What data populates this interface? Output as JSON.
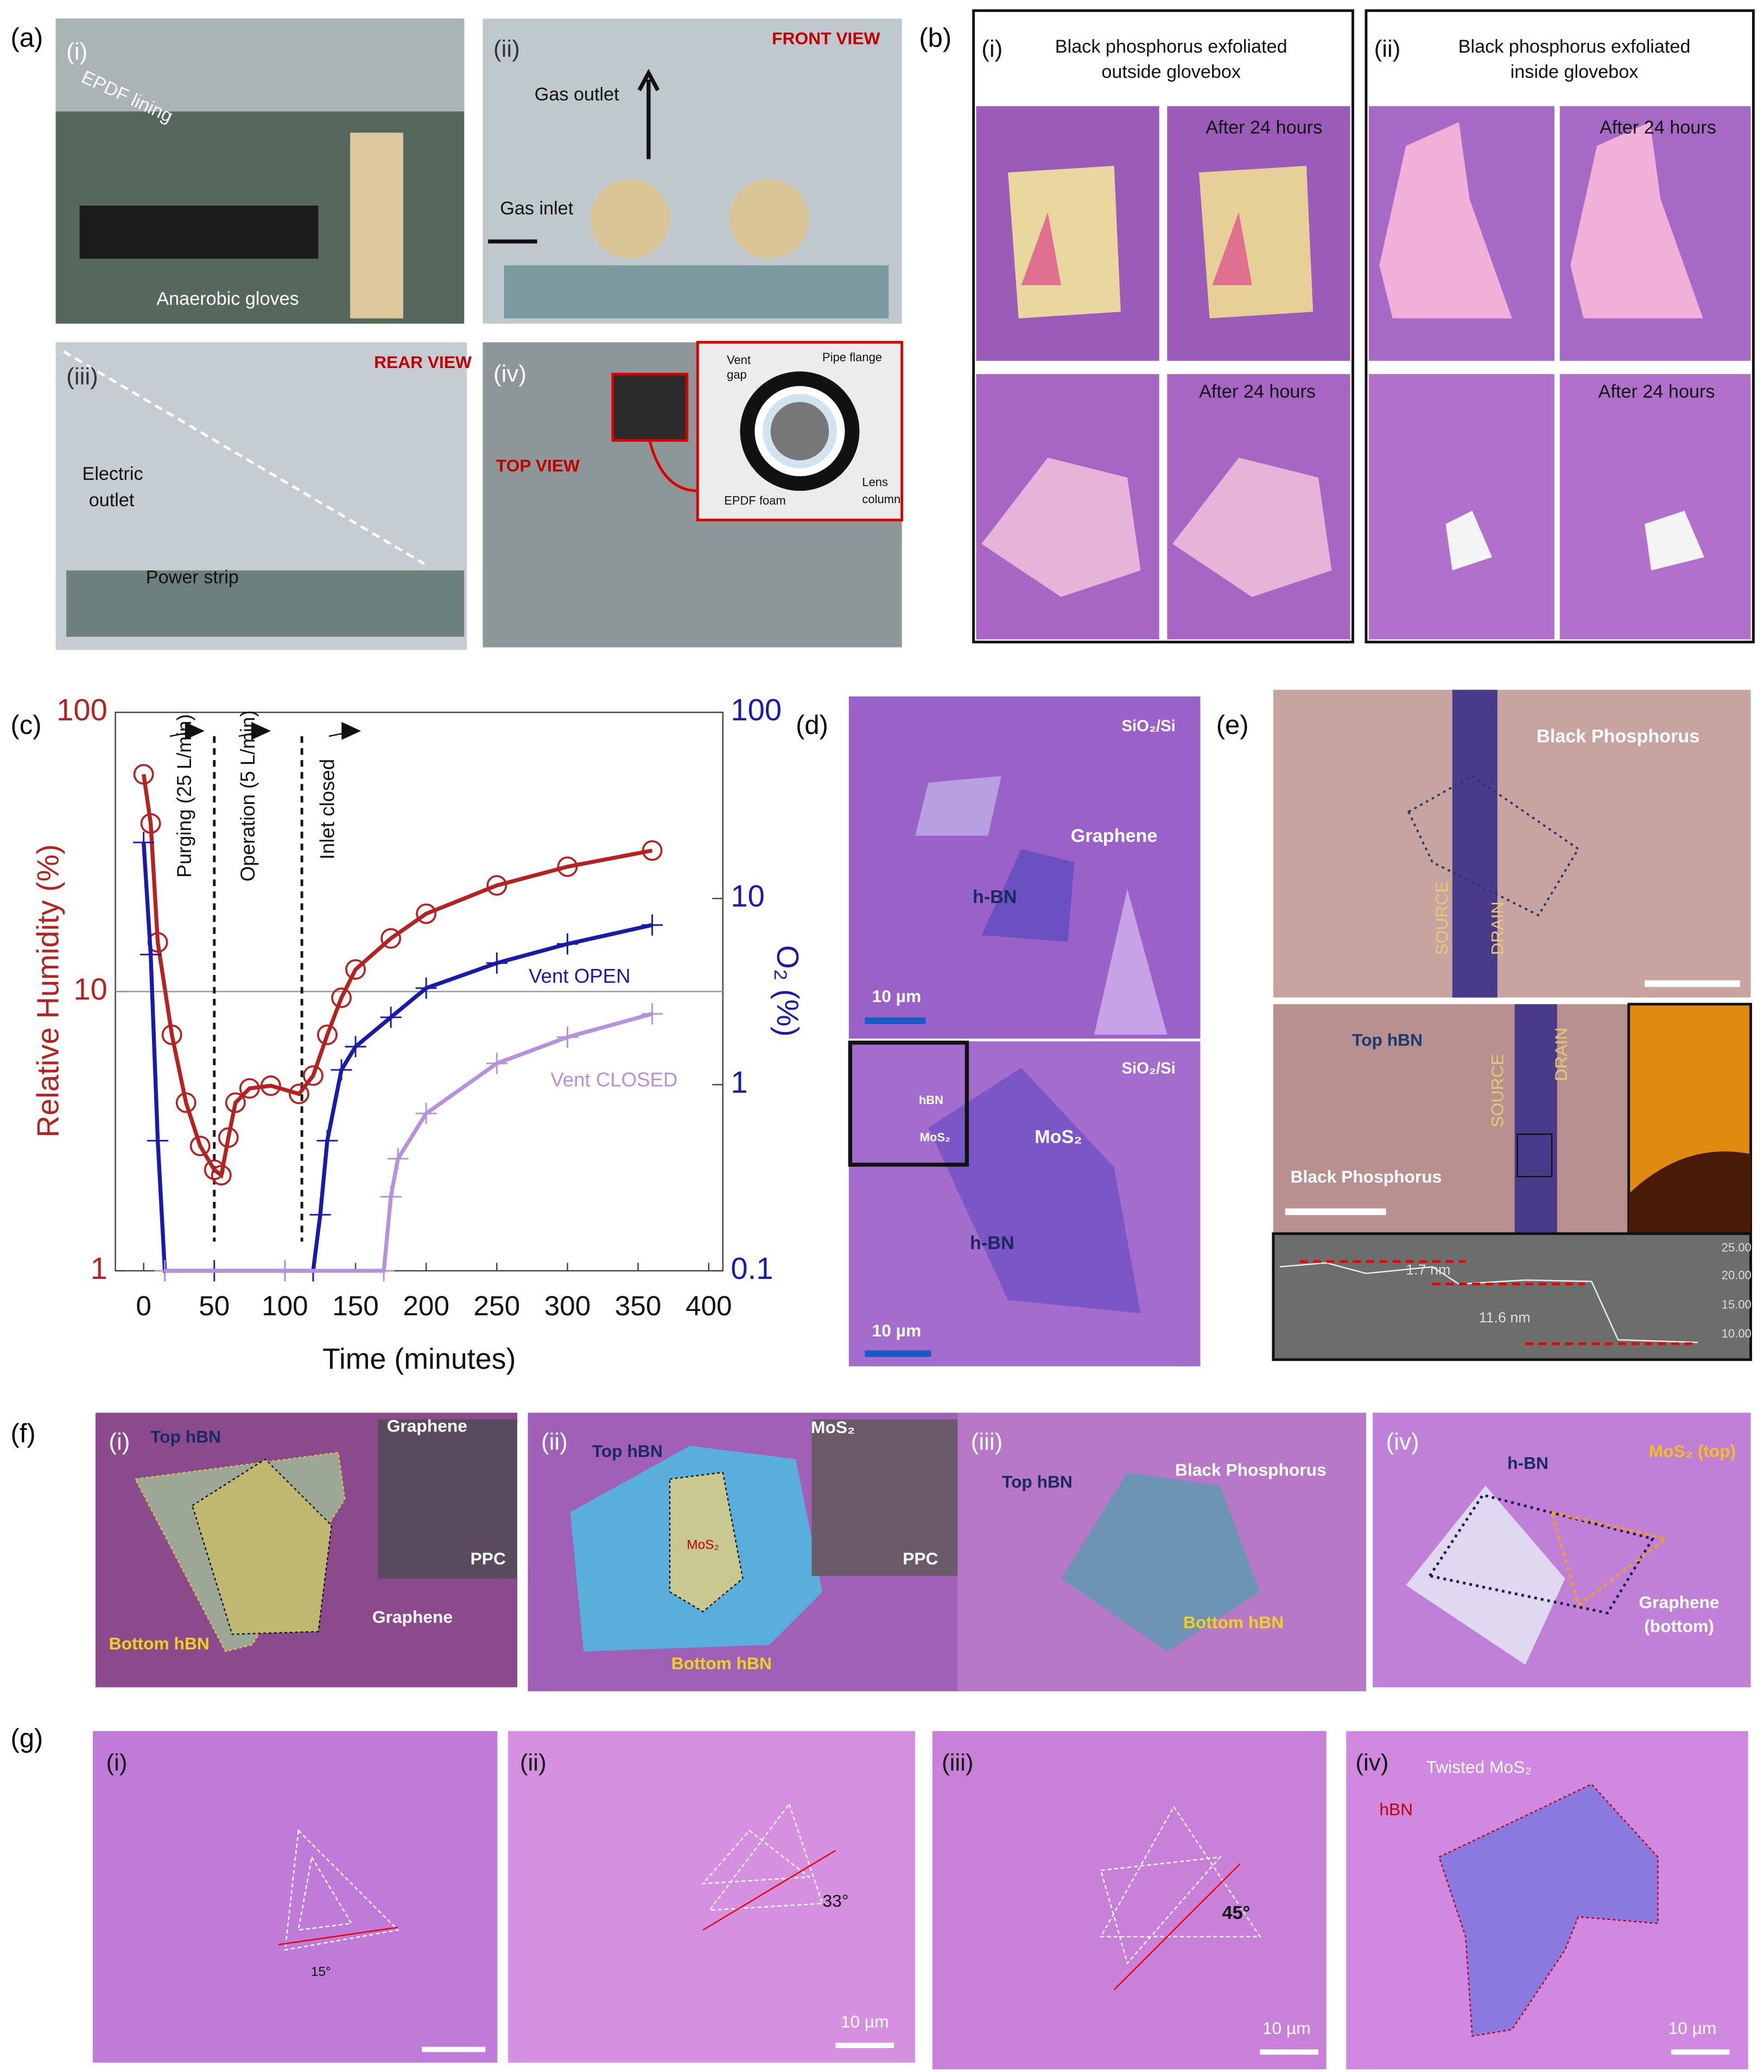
{
  "panels": {
    "a": {
      "label": "(a)",
      "texts": [
        "(i)",
        "EPDF lining",
        "Anaerobic gloves",
        "(ii)",
        "FRONT VIEW",
        "Gas outlet",
        "Gas inlet",
        "(iii)",
        "REAR VIEW",
        "Electric",
        "outlet",
        "Power strip",
        "(iv)",
        "TOP VIEW",
        "Vent",
        "gap",
        "Pipe flange",
        "Lens",
        "column",
        "EPDF foam"
      ]
    },
    "b": {
      "label": "(b)",
      "texts": [
        "(i)",
        "Black phosphorus exfoliated",
        "outside glovebox",
        "After 24 hours",
        "After 24 hours",
        "(ii)",
        "Black phosphorus exfoliated",
        "inside glovebox",
        "After 24 hours",
        "After 24 hours"
      ]
    },
    "c": {
      "label": "(c)"
    },
    "d": {
      "label": "(d)",
      "texts": [
        "SiO₂/Si",
        "Graphene",
        "h-BN",
        "10 µm",
        "SiO₂/Si",
        "hBN",
        "MoS₂",
        "MoS₂",
        "h-BN",
        "10 µm"
      ]
    },
    "e": {
      "label": "(e)",
      "texts": [
        "Black Phosphorus",
        "SOURCE",
        "DRAIN",
        "Top hBN",
        "SOURCE",
        "DRAIN",
        "Black Phosphorus",
        "1.7 nm",
        "11.6 nm",
        "25.00",
        "20.00",
        "15.00",
        "10.00"
      ]
    },
    "f": {
      "label": "(f)",
      "texts": [
        "(i)",
        "Top hBN",
        "Graphene",
        "PPC",
        "Graphene",
        "Bottom hBN",
        "(ii)",
        "Top hBN",
        "MoS₂",
        "MoS₂",
        "PPC",
        "Bottom hBN",
        "(iii)",
        "Top hBN",
        "Black Phosphorus",
        "Bottom hBN",
        "(iv)",
        "h-BN",
        "MoS₂ (top)",
        "Graphene",
        "(bottom)"
      ]
    },
    "g": {
      "label": "(g)",
      "texts": [
        "(i)",
        "15°",
        "(ii)",
        "33°",
        "10 µm",
        "(iii)",
        "45°",
        "10 µm",
        "(iv)",
        "Twisted MoS₂",
        "hBN",
        "10 µm"
      ]
    }
  },
  "chart_data": {
    "type": "line",
    "x_label": "Time (minutes)",
    "y_label": "Relative Humidity (%)",
    "y2_label": "O₂ (%)",
    "xlim": [
      -20,
      410
    ],
    "xticks": [
      0,
      50,
      100,
      150,
      200,
      250,
      300,
      350,
      400
    ],
    "ylim": [
      1,
      100
    ],
    "yticks": [
      1,
      10,
      100
    ],
    "y2lim": [
      0.1,
      100
    ],
    "y2ticks": [
      0.1,
      1,
      10,
      100
    ],
    "log_scale": true,
    "grid_y": [
      10
    ],
    "event_lines": [
      50,
      112
    ],
    "annotations": [
      "Purging (25 L/min)",
      "Operation (5 L/min)",
      "Inlet closed",
      "Vent OPEN",
      "Vent CLOSED"
    ],
    "series": [
      {
        "name": "Relative Humidity",
        "color": "#b52222",
        "axis": "y",
        "x": [
          0,
          5,
          10,
          20,
          30,
          40,
          50,
          55,
          60,
          65,
          75,
          90,
          110,
          120,
          130,
          140,
          150,
          175,
          200,
          250,
          300,
          360
        ],
        "values": [
          60,
          40,
          15,
          7,
          4,
          2.8,
          2.3,
          2.2,
          3,
          4,
          4.5,
          4.6,
          4.3,
          5,
          7,
          9.5,
          12,
          15.5,
          19,
          24,
          28,
          32
        ]
      },
      {
        "name": "Vent OPEN",
        "color": "#1a1aa8",
        "axis": "y2",
        "x": [
          0,
          5,
          10,
          15,
          50,
          100,
          120,
          125,
          130,
          140,
          150,
          175,
          200,
          250,
          300,
          360
        ],
        "values": [
          20,
          5,
          0.5,
          0.1,
          0.1,
          0.1,
          0.1,
          0.2,
          0.5,
          1.2,
          1.6,
          2.3,
          3.3,
          4.5,
          5.7,
          7.2
        ]
      },
      {
        "name": "Vent CLOSED",
        "color": "#b692dc",
        "axis": "y2",
        "x": [
          15,
          100,
          170,
          175,
          180,
          200,
          250,
          300,
          360
        ],
        "values": [
          0.1,
          0.1,
          0.1,
          0.25,
          0.4,
          0.7,
          1.3,
          1.8,
          2.4
        ]
      }
    ]
  }
}
